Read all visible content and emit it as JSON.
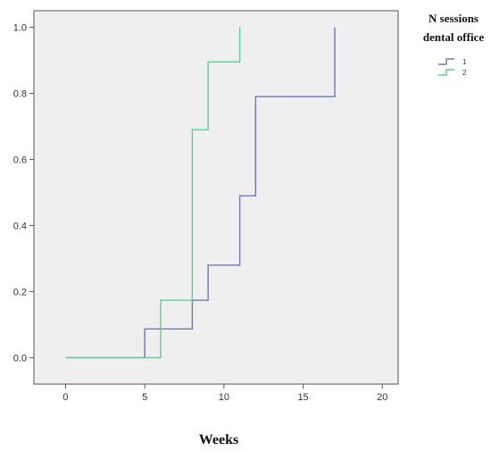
{
  "chart_data": {
    "type": "line",
    "step": true,
    "xlabel": "Weeks",
    "ylabel": "",
    "xlim": [
      -2,
      21
    ],
    "ylim": [
      -0.08,
      1.05
    ],
    "xticks": [
      0,
      5,
      10,
      15,
      20
    ],
    "xtick_labels": [
      "0",
      "5",
      "10",
      "15",
      "20"
    ],
    "yticks": [
      0.0,
      0.2,
      0.4,
      0.6,
      0.8,
      1.0
    ],
    "ytick_labels": [
      "0.0",
      "0.2",
      "0.4",
      "0.6",
      "0.8",
      "1.0"
    ],
    "grid": false,
    "background": "#efefef",
    "legend": {
      "title_line1": "N sessions",
      "title_line2": "dental office",
      "placement": "right"
    },
    "series": [
      {
        "name": "1",
        "color": "#6b79b5",
        "x": [
          0,
          5,
          8,
          9,
          11,
          12,
          17,
          17
        ],
        "y": [
          0.0,
          0.087,
          0.174,
          0.28,
          0.49,
          0.79,
          0.79,
          1.0
        ]
      },
      {
        "name": "2",
        "color": "#5fcf8f",
        "x": [
          0,
          6,
          8,
          9,
          11,
          11
        ],
        "y": [
          0.0,
          0.174,
          0.69,
          0.895,
          0.895,
          1.0
        ]
      }
    ]
  }
}
